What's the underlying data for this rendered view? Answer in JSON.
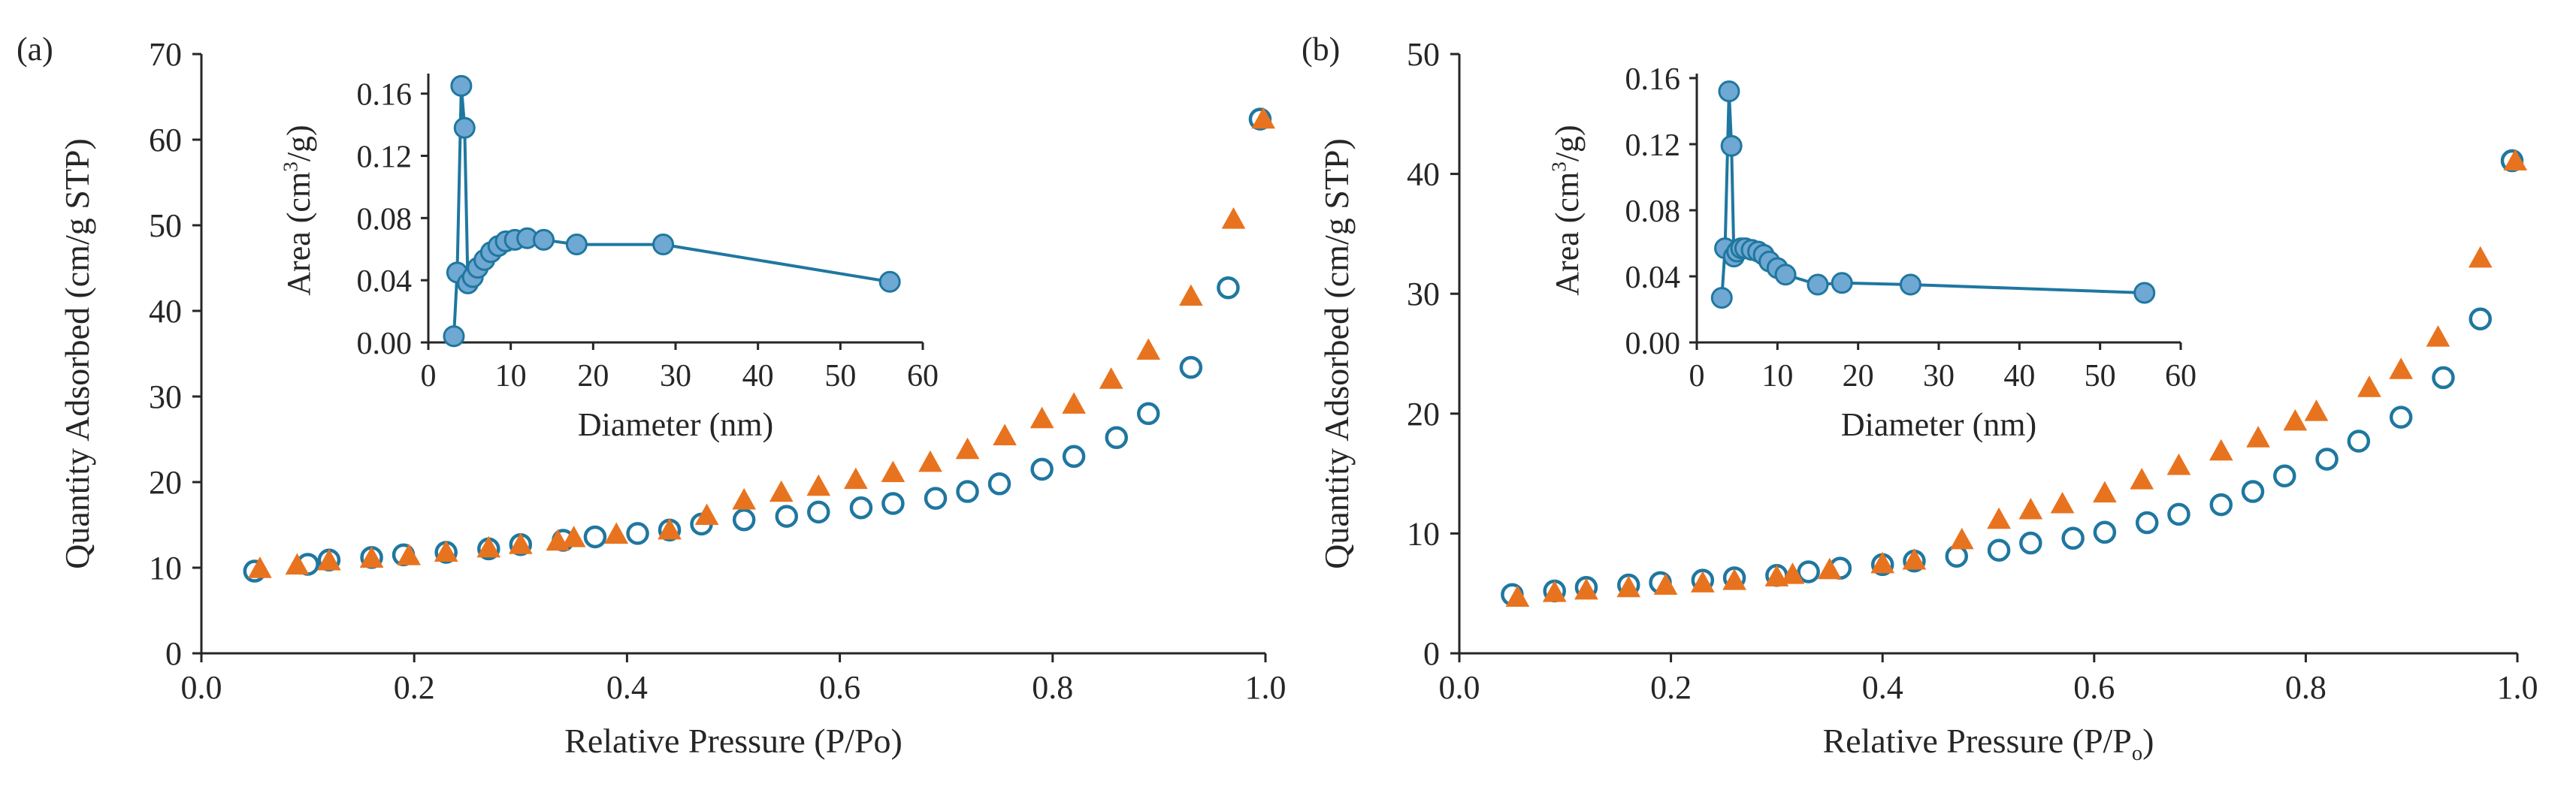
{
  "colors": {
    "open_circle": "#1f77a0",
    "triangle": "#e8731f",
    "inset_marker_fill": "#6fa8d2",
    "inset_line": "#1f77a0",
    "axis": "#262626"
  },
  "chart_data": [
    {
      "panel_label": "(a)",
      "type": "scatter",
      "xlabel": "Relative  Pressure (P/Po)",
      "ylabel": "Quantity Adsorbed (cm/g STP)",
      "xlim": [
        0,
        1.0
      ],
      "ylim": [
        0,
        70
      ],
      "xticks": [
        "0.0",
        "0.2",
        "0.4",
        "0.6",
        "0.8",
        "1.0"
      ],
      "yticks": [
        "0",
        "10",
        "20",
        "30",
        "40",
        "50",
        "60",
        "70"
      ],
      "series": [
        {
          "marker": "open-circle",
          "x": [
            0.05,
            0.1,
            0.12,
            0.16,
            0.19,
            0.23,
            0.27,
            0.3,
            0.34,
            0.37,
            0.41,
            0.44,
            0.47,
            0.51,
            0.55,
            0.58,
            0.62,
            0.65,
            0.69,
            0.72,
            0.75,
            0.79,
            0.82,
            0.86,
            0.89,
            0.93,
            0.965,
            0.995
          ],
          "y": [
            9.6,
            10.4,
            10.9,
            11.2,
            11.5,
            11.8,
            12.2,
            12.7,
            13.2,
            13.6,
            14.0,
            14.4,
            15.1,
            15.6,
            16.0,
            16.5,
            17.0,
            17.5,
            18.1,
            18.9,
            19.8,
            21.5,
            23.0,
            25.2,
            28.0,
            33.4,
            42.7,
            62.4
          ]
        },
        {
          "marker": "filled-triangle",
          "x": [
            0.055,
            0.09,
            0.12,
            0.16,
            0.195,
            0.23,
            0.27,
            0.3,
            0.335,
            0.35,
            0.39,
            0.44,
            0.475,
            0.51,
            0.545,
            0.58,
            0.615,
            0.65,
            0.685,
            0.72,
            0.755,
            0.79,
            0.82,
            0.855,
            0.89,
            0.93,
            0.97,
            0.998
          ],
          "y": [
            9.8,
            10.2,
            10.7,
            11.0,
            11.3,
            11.7,
            12.2,
            12.6,
            13.0,
            13.4,
            13.8,
            14.3,
            16.0,
            17.8,
            18.7,
            19.4,
            20.2,
            21.0,
            22.2,
            23.7,
            25.3,
            27.3,
            29.0,
            31.9,
            35.3,
            41.6,
            50.6,
            62.3
          ]
        }
      ],
      "inset": {
        "type": "line",
        "xlabel": "Diameter  (nm)",
        "ylabel": "Area (cm3/g)",
        "ylabel_parts": [
          "Area (cm",
          "3",
          "/g)"
        ],
        "xlim": [
          0,
          60
        ],
        "ylim": [
          0,
          0.17
        ],
        "xticks": [
          "0",
          "10",
          "20",
          "30",
          "40",
          "50",
          "60"
        ],
        "yticks": [
          "0.00",
          "0.04",
          "0.08",
          "0.12",
          "0.16"
        ],
        "x": [
          3.1,
          3.5,
          4.0,
          4.4,
          4.8,
          5.4,
          6.0,
          6.8,
          7.6,
          8.5,
          9.4,
          10.5,
          12.0,
          14.0,
          18.0,
          28.5,
          56.0
        ],
        "y": [
          0.004,
          0.045,
          0.165,
          0.138,
          0.038,
          0.042,
          0.048,
          0.053,
          0.058,
          0.062,
          0.065,
          0.066,
          0.067,
          0.066,
          0.063,
          0.063,
          0.039
        ]
      }
    },
    {
      "panel_label": "(b)",
      "type": "scatter",
      "xlabel": "Relative  Pressure (P/Po)",
      "xlabel_parts": [
        "Relative  Pressure (P/P",
        "o",
        ")"
      ],
      "ylabel": "Quantity Adsorbed (cm/g STP)",
      "xlim": [
        0,
        1.0
      ],
      "ylim": [
        0,
        50
      ],
      "xticks": [
        "0.0",
        "0.2",
        "0.4",
        "0.6",
        "0.8",
        "1.0"
      ],
      "yticks": [
        "0",
        "10",
        "20",
        "30",
        "40",
        "50"
      ],
      "series": [
        {
          "marker": "open-circle",
          "x": [
            0.05,
            0.09,
            0.12,
            0.16,
            0.19,
            0.23,
            0.26,
            0.3,
            0.33,
            0.36,
            0.4,
            0.43,
            0.47,
            0.51,
            0.54,
            0.58,
            0.61,
            0.65,
            0.68,
            0.72,
            0.75,
            0.78,
            0.82,
            0.85,
            0.89,
            0.93,
            0.965,
            0.995
          ],
          "y": [
            4.9,
            5.2,
            5.5,
            5.7,
            5.9,
            6.1,
            6.3,
            6.5,
            6.8,
            7.1,
            7.4,
            7.7,
            8.1,
            8.6,
            9.2,
            9.6,
            10.1,
            10.9,
            11.6,
            12.4,
            13.5,
            14.8,
            16.2,
            17.7,
            19.7,
            23.0,
            27.9,
            41.1
          ]
        },
        {
          "marker": "filled-triangle",
          "x": [
            0.055,
            0.09,
            0.12,
            0.16,
            0.195,
            0.23,
            0.26,
            0.3,
            0.315,
            0.35,
            0.4,
            0.43,
            0.475,
            0.51,
            0.54,
            0.57,
            0.61,
            0.645,
            0.68,
            0.72,
            0.755,
            0.79,
            0.81,
            0.86,
            0.89,
            0.925,
            0.965,
            0.998
          ],
          "y": [
            4.6,
            5.0,
            5.2,
            5.4,
            5.6,
            5.8,
            6.0,
            6.3,
            6.5,
            6.9,
            7.4,
            7.7,
            9.4,
            11.1,
            11.9,
            12.4,
            13.3,
            14.4,
            15.6,
            16.8,
            17.9,
            19.3,
            20.1,
            22.1,
            23.6,
            26.3,
            32.9,
            41.0
          ]
        }
      ],
      "inset": {
        "type": "line",
        "xlabel": "Diameter  (nm)",
        "ylabel": "Area (cm3/g)",
        "ylabel_parts": [
          "Area (cm",
          "3",
          "/g)"
        ],
        "xlim": [
          0,
          60
        ],
        "ylim": [
          0,
          0.16
        ],
        "xticks": [
          "0",
          "10",
          "20",
          "30",
          "40",
          "50",
          "60"
        ],
        "yticks": [
          "0.00",
          "0.04",
          "0.08",
          "0.12",
          "0.16"
        ],
        "x": [
          3.1,
          3.5,
          4.0,
          4.3,
          4.6,
          5.0,
          5.5,
          6.0,
          6.8,
          7.6,
          8.3,
          9.0,
          10.0,
          11.0,
          15.0,
          18.0,
          26.5,
          55.5
        ],
        "y": [
          0.027,
          0.057,
          0.152,
          0.119,
          0.052,
          0.055,
          0.057,
          0.057,
          0.056,
          0.055,
          0.053,
          0.049,
          0.045,
          0.041,
          0.035,
          0.036,
          0.035,
          0.03
        ]
      }
    }
  ]
}
